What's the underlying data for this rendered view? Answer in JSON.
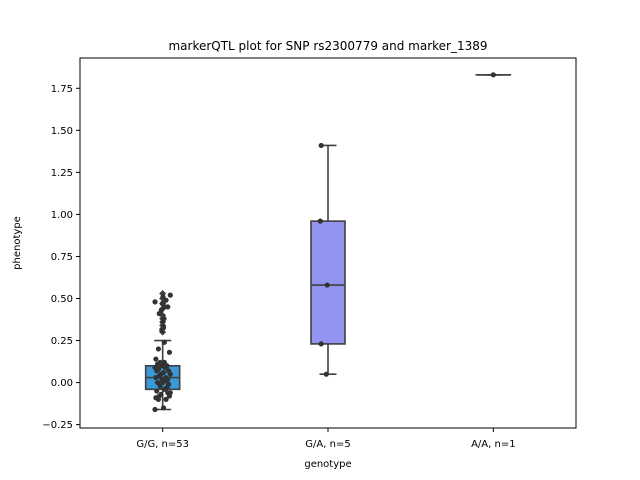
{
  "chart_data": {
    "type": "box",
    "title": "markerQTL plot for SNP rs2300779 and marker_1389",
    "xlabel": "genotype",
    "ylabel": "phenotype",
    "ylim": [
      -0.27,
      1.93
    ],
    "yticks": [
      -0.25,
      0.0,
      0.25,
      0.5,
      0.75,
      1.0,
      1.25,
      1.5,
      1.75
    ],
    "ytick_labels": [
      "−0.25",
      "0.00",
      "0.25",
      "0.50",
      "0.75",
      "1.00",
      "1.25",
      "1.50",
      "1.75"
    ],
    "categories": [
      "G/G, n=53",
      "G/A, n=5",
      "A/A, n=1"
    ],
    "colors": [
      "#3a9ad9",
      "#9393f1",
      "#c9524c"
    ],
    "boxes": [
      {
        "q1": -0.04,
        "median": 0.03,
        "q3": 0.1,
        "whisker_low": -0.16,
        "whisker_high": 0.25
      },
      {
        "q1": 0.23,
        "median": 0.58,
        "q3": 0.96,
        "whisker_low": 0.05,
        "whisker_high": 1.41
      },
      {
        "q1": 1.83,
        "median": 1.83,
        "q3": 1.83,
        "whisker_low": 1.83,
        "whisker_high": 1.83
      }
    ],
    "outliers": [
      [
        0.3,
        0.32,
        0.34,
        0.36,
        0.38,
        0.4,
        0.44,
        0.47,
        0.5,
        0.53
      ],
      [],
      []
    ],
    "points": [
      [
        {
          "x": -0.45,
          "y": -0.16
        },
        {
          "x": 0.05,
          "y": -0.15
        },
        {
          "x": -0.25,
          "y": -0.1
        },
        {
          "x": -0.4,
          "y": -0.09
        },
        {
          "x": -0.2,
          "y": -0.08
        },
        {
          "x": 0.4,
          "y": -0.08
        },
        {
          "x": -0.1,
          "y": -0.07
        },
        {
          "x": 0.3,
          "y": -0.06
        },
        {
          "x": -0.35,
          "y": -0.05
        },
        {
          "x": 0.1,
          "y": -0.04
        },
        {
          "x": 0.25,
          "y": -0.03
        },
        {
          "x": -0.15,
          "y": -0.02
        },
        {
          "x": 0.35,
          "y": -0.01
        },
        {
          "x": -0.3,
          "y": 0.0
        },
        {
          "x": 0.0,
          "y": 0.0
        },
        {
          "x": 0.15,
          "y": 0.01
        },
        {
          "x": -0.05,
          "y": 0.02
        },
        {
          "x": 0.3,
          "y": 0.02
        },
        {
          "x": -0.4,
          "y": 0.03
        },
        {
          "x": 0.2,
          "y": 0.03
        },
        {
          "x": -0.2,
          "y": 0.04
        },
        {
          "x": 0.45,
          "y": 0.05
        },
        {
          "x": -0.1,
          "y": 0.05
        },
        {
          "x": 0.05,
          "y": 0.06
        },
        {
          "x": -0.35,
          "y": 0.07
        },
        {
          "x": 0.35,
          "y": 0.07
        },
        {
          "x": -0.25,
          "y": 0.08
        },
        {
          "x": 0.15,
          "y": 0.09
        },
        {
          "x": -0.05,
          "y": 0.1
        },
        {
          "x": 0.25,
          "y": 0.1
        },
        {
          "x": -0.3,
          "y": 0.11
        },
        {
          "x": 0.1,
          "y": 0.12
        },
        {
          "x": -0.15,
          "y": 0.12
        },
        {
          "x": -0.4,
          "y": 0.14
        },
        {
          "x": 0.4,
          "y": 0.18
        },
        {
          "x": -0.25,
          "y": 0.2
        },
        {
          "x": 0.1,
          "y": 0.24
        },
        {
          "x": -0.45,
          "y": 0.48
        },
        {
          "x": 0.2,
          "y": 0.49
        },
        {
          "x": 0.45,
          "y": 0.52
        },
        {
          "x": -0.05,
          "y": 0.31
        },
        {
          "x": 0.05,
          "y": 0.33
        },
        {
          "x": 0.0,
          "y": 0.36
        },
        {
          "x": 0.08,
          "y": 0.38
        },
        {
          "x": -0.08,
          "y": 0.43
        },
        {
          "x": 0.12,
          "y": 0.45
        },
        {
          "x": -0.02,
          "y": 0.47
        },
        {
          "x": 0.02,
          "y": 0.51
        },
        {
          "x": 0.3,
          "y": 0.45
        },
        {
          "x": -0.2,
          "y": 0.41
        },
        {
          "x": 0.45,
          "y": -0.06
        },
        {
          "x": -0.45,
          "y": 0.09
        },
        {
          "x": 0.2,
          "y": -0.1
        }
      ],
      [
        {
          "x": -0.45,
          "y": 0.96
        },
        {
          "x": -0.4,
          "y": 0.23
        },
        {
          "x": -0.1,
          "y": 0.05
        },
        {
          "x": -0.05,
          "y": 0.58
        },
        {
          "x": -0.4,
          "y": 1.41
        }
      ],
      [
        {
          "x": 0.0,
          "y": 1.83
        }
      ]
    ]
  }
}
